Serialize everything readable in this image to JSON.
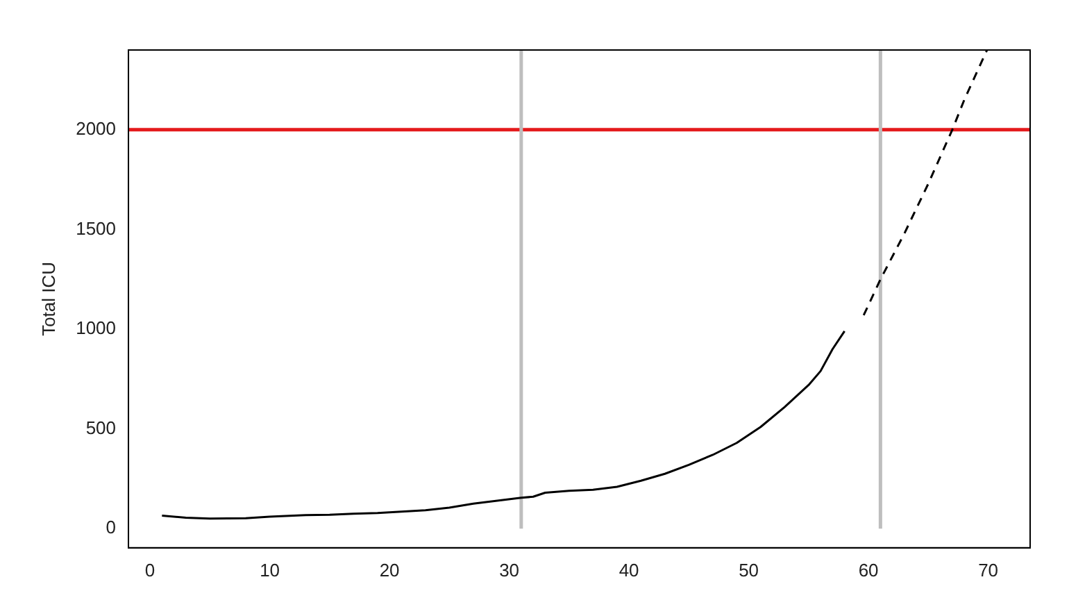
{
  "chart_data": {
    "type": "line",
    "ylabel": "Total ICU",
    "xlim": [
      -1.8,
      73.5
    ],
    "xticks": [
      0,
      10,
      20,
      30,
      40,
      50,
      60,
      70
    ],
    "ylim": [
      -96,
      2400
    ],
    "yticks": [
      0,
      500,
      1000,
      1500,
      2000
    ],
    "grid": false,
    "legend": false,
    "marker": "none",
    "series": [
      {
        "color": "#000000",
        "line_style": "solid",
        "x": [
          1,
          3,
          5,
          8,
          10,
          13,
          15,
          17,
          19,
          21,
          23,
          25,
          27,
          29,
          31,
          32,
          33,
          35,
          37,
          39,
          41,
          43,
          45,
          47,
          49,
          51,
          53,
          55,
          56,
          57,
          58
        ],
        "values": [
          65,
          55,
          50,
          52,
          60,
          68,
          70,
          75,
          78,
          85,
          92,
          105,
          125,
          140,
          155,
          160,
          180,
          190,
          195,
          210,
          240,
          275,
          320,
          370,
          430,
          510,
          610,
          720,
          790,
          900,
          990
        ]
      },
      {
        "color": "#000000",
        "line_style": "dashed",
        "x": [
          59.6,
          61,
          63,
          65,
          67,
          68,
          69.9
        ],
        "values": [
          1070,
          1250,
          1480,
          1730,
          2000,
          2150,
          2400
        ]
      }
    ],
    "ref_lines": [
      {
        "axis": "y",
        "value": 2000,
        "color": "#e41a1c",
        "line_style": "solid"
      },
      {
        "axis": "x",
        "value": 31,
        "color": "#bebebe",
        "line_style": "solid"
      },
      {
        "axis": "x",
        "value": 61,
        "color": "#bebebe",
        "line_style": "solid"
      }
    ]
  }
}
